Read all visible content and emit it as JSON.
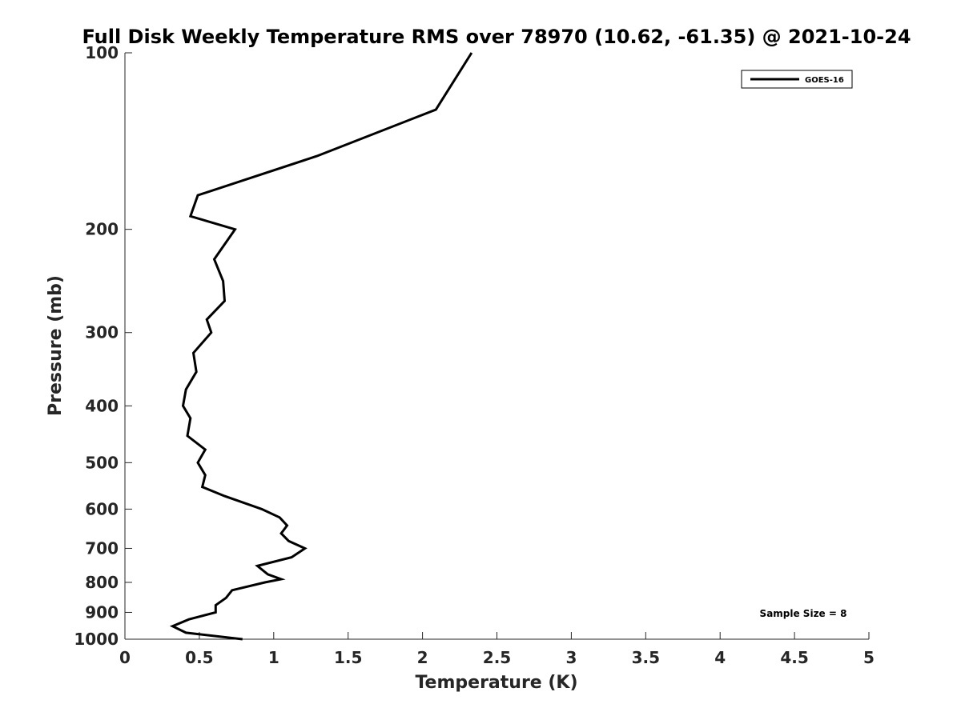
{
  "chart_data": {
    "type": "line",
    "title": "Full Disk Weekly Temperature RMS over 78970 (10.62, -61.35) @ 2021-10-24",
    "xlabel": "Temperature (K)",
    "ylabel": "Pressure (mb)",
    "xlim": [
      0,
      5
    ],
    "ylim": [
      100,
      1000
    ],
    "y_scale": "log",
    "y_reversed": true,
    "grid": false,
    "x_ticks": [
      "0",
      "0.5",
      "1",
      "1.5",
      "2",
      "2.5",
      "3",
      "3.5",
      "4",
      "4.5",
      "5"
    ],
    "y_ticks": [
      "100",
      "200",
      "300",
      "400",
      "500",
      "600",
      "700",
      "800",
      "900",
      "1000"
    ],
    "legend": {
      "position": "top-right",
      "entries": [
        "GOES-16"
      ]
    },
    "annotation": "Sample Size = 8",
    "series": [
      {
        "name": "GOES-16",
        "color": "#000000",
        "points": [
          [
            2.33,
            100
          ],
          [
            2.09,
            125
          ],
          [
            1.29,
            150
          ],
          [
            0.49,
            175
          ],
          [
            0.44,
            190
          ],
          [
            0.74,
            200
          ],
          [
            0.6,
            225
          ],
          [
            0.66,
            245
          ],
          [
            0.67,
            265
          ],
          [
            0.55,
            285
          ],
          [
            0.58,
            300
          ],
          [
            0.46,
            325
          ],
          [
            0.48,
            350
          ],
          [
            0.41,
            375
          ],
          [
            0.39,
            400
          ],
          [
            0.44,
            420
          ],
          [
            0.42,
            450
          ],
          [
            0.54,
            475
          ],
          [
            0.49,
            500
          ],
          [
            0.54,
            525
          ],
          [
            0.52,
            550
          ],
          [
            0.67,
            570
          ],
          [
            0.92,
            600
          ],
          [
            1.04,
            620
          ],
          [
            1.09,
            640
          ],
          [
            1.05,
            660
          ],
          [
            1.1,
            680
          ],
          [
            1.21,
            700
          ],
          [
            1.12,
            725
          ],
          [
            0.89,
            750
          ],
          [
            0.96,
            775
          ],
          [
            1.05,
            790
          ],
          [
            0.94,
            800
          ],
          [
            0.72,
            825
          ],
          [
            0.68,
            850
          ],
          [
            0.61,
            875
          ],
          [
            0.61,
            900
          ],
          [
            0.43,
            925
          ],
          [
            0.32,
            950
          ],
          [
            0.41,
            975
          ],
          [
            0.79,
            1000
          ]
        ]
      }
    ]
  }
}
